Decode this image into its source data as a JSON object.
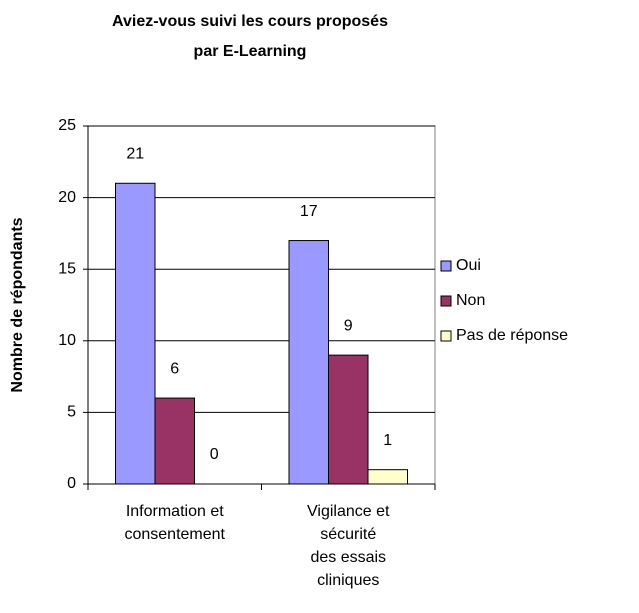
{
  "chart_data": {
    "type": "bar",
    "title": "Aviez-vous suivi les cours proposés\npar E-Learning",
    "y_label": "Nombre de répondants",
    "categories": [
      "Information et\nconsentement",
      "Vigilance et\nsécurité\ndes essais\ncliniques"
    ],
    "series": [
      {
        "name": "Oui",
        "color": "#9999ff",
        "values": [
          21,
          17
        ]
      },
      {
        "name": "Non",
        "color": "#993366",
        "values": [
          6,
          9
        ]
      },
      {
        "name": "Pas de réponse",
        "color": "#ffffcc",
        "values": [
          0,
          1
        ]
      }
    ],
    "ylim": [
      0,
      25
    ],
    "yticks": [
      0,
      5,
      10,
      15,
      20,
      25
    ],
    "grid": true,
    "legend": "right"
  }
}
